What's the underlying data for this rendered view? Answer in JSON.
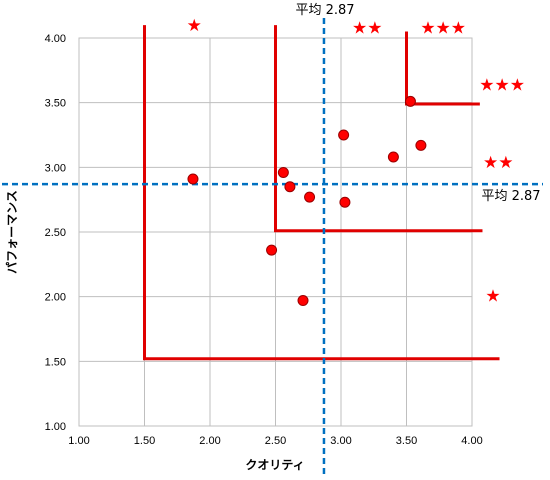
{
  "chart_data": {
    "type": "scatter",
    "xlabel": "クオリティ",
    "ylabel": "パフォーマンス",
    "xlim": [
      1.0,
      4.0
    ],
    "ylim": [
      1.0,
      4.0
    ],
    "xticks": [
      "1.00",
      "1.50",
      "2.00",
      "2.50",
      "3.00",
      "3.50",
      "4.00"
    ],
    "yticks": [
      "1.00",
      "1.50",
      "2.00",
      "2.50",
      "3.00",
      "3.50",
      "4.00"
    ],
    "grid": true,
    "points": [
      {
        "x": 1.87,
        "y": 2.91
      },
      {
        "x": 2.47,
        "y": 2.36
      },
      {
        "x": 2.56,
        "y": 2.96
      },
      {
        "x": 2.61,
        "y": 2.85
      },
      {
        "x": 2.71,
        "y": 1.97
      },
      {
        "x": 2.76,
        "y": 2.77
      },
      {
        "x": 3.02,
        "y": 3.25
      },
      {
        "x": 3.03,
        "y": 2.73
      },
      {
        "x": 3.4,
        "y": 3.08
      },
      {
        "x": 3.53,
        "y": 3.51
      },
      {
        "x": 3.61,
        "y": 3.17
      }
    ],
    "averages": {
      "x": 2.87,
      "y": 2.87,
      "x_label": "平均 2.87",
      "y_label": "平均 2.87"
    },
    "zones": [
      {
        "x_from": 1.5,
        "y_from": 1.52
      },
      {
        "x_from": 2.5,
        "y_from": 2.51
      },
      {
        "x_from": 3.5,
        "y_from": 3.49
      }
    ],
    "star_labels": [
      {
        "text": "★",
        "at": "top-left",
        "data_x": 1.88,
        "data_y": 4.1
      },
      {
        "text": "★★",
        "at": "top-center",
        "data_x": 3.2,
        "data_y": 4.08
      },
      {
        "text": "★★★",
        "at": "top-right",
        "data_x": 3.78,
        "data_y": 4.08
      },
      {
        "text": "★★★",
        "at": "right",
        "data_x": 4.23,
        "data_y": 3.64
      },
      {
        "text": "★★",
        "at": "right",
        "data_x": 4.2,
        "data_y": 3.04
      },
      {
        "text": "★",
        "at": "right",
        "data_x": 4.16,
        "data_y": 2.01
      }
    ],
    "colors": {
      "points": "#ff0000",
      "point_outline": "#990000",
      "zones": "#e00000",
      "averages": "#0070c0",
      "grid": "#bfbfbf",
      "stars": "#ff0000"
    }
  }
}
